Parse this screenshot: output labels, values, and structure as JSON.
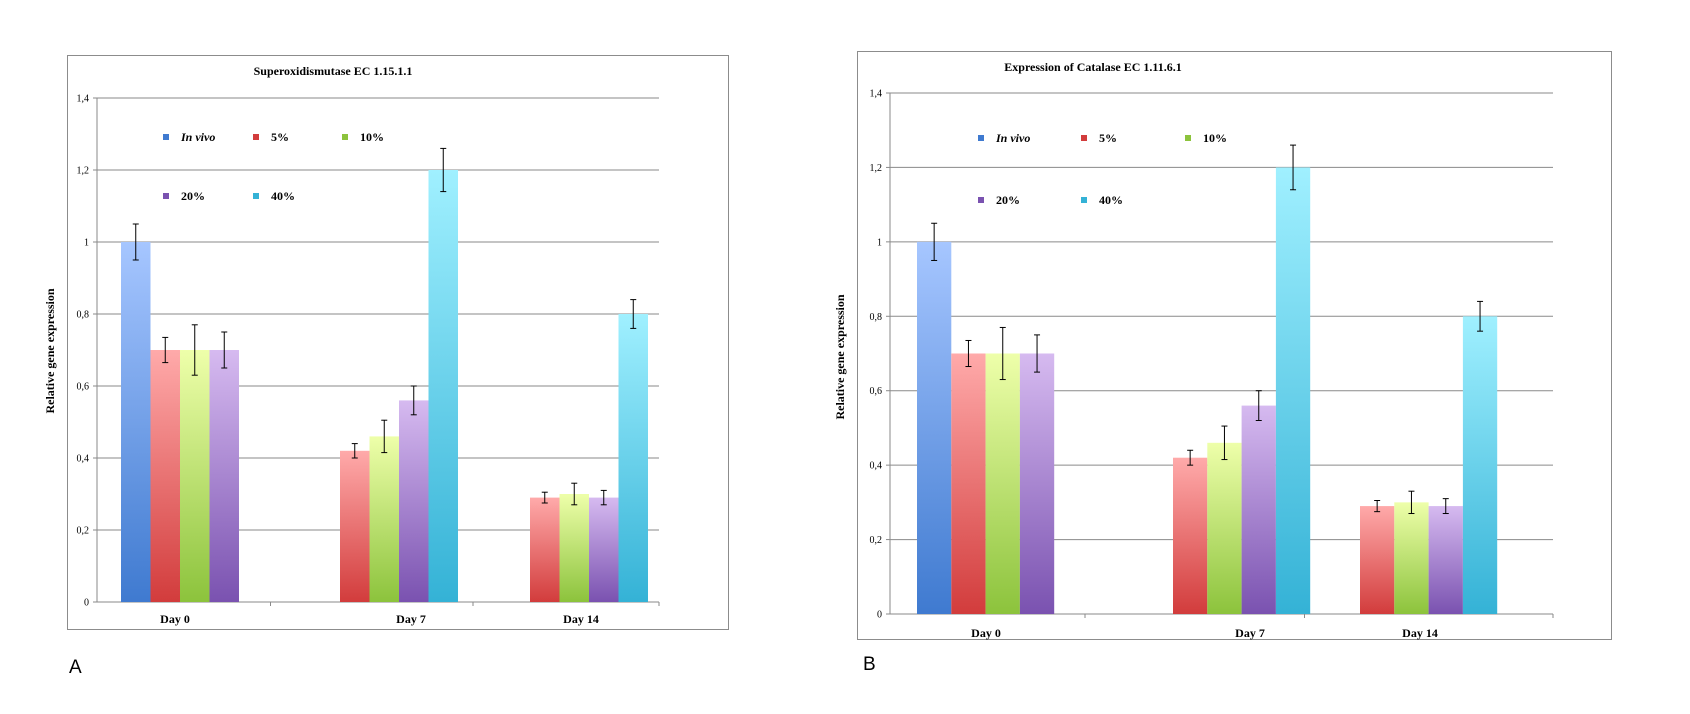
{
  "colors": {
    "in_vivo": [
      "#a6c6ff",
      "#3f7ad0"
    ],
    "p5": [
      "#ffaaaa",
      "#d23c3c"
    ],
    "p10": [
      "#eeffaa",
      "#8cc33c"
    ],
    "p20": [
      "#d6baf0",
      "#7a52b0"
    ],
    "p40": [
      "#a0f0ff",
      "#34b2d6"
    ],
    "grid": "#8a8a8a",
    "error_bar": "#000000"
  },
  "panels": {
    "a": {
      "letter": "A"
    },
    "b": {
      "letter": "B"
    }
  },
  "chart_data": [
    {
      "type": "bar",
      "title": "Superoxidismutase EC 1.15.1.1",
      "xlabel": "",
      "ylabel": "Relative gene expression",
      "ylim": [
        0,
        1.4
      ],
      "yticks": [
        "0",
        "0,2",
        "0,4",
        "0,6",
        "0,8",
        "1",
        "1,2",
        "1,4"
      ],
      "grid": true,
      "legend_position": "top-left, inside plot",
      "categories": [
        "Day 0",
        "Day 7",
        "Day 14"
      ],
      "series": [
        {
          "name": "In vivo",
          "color_key": "in_vivo",
          "italic": true,
          "values": [
            1.0,
            null,
            null
          ],
          "errors": [
            0.05,
            null,
            null
          ]
        },
        {
          "name": "5%",
          "color_key": "p5",
          "values": [
            0.7,
            0.42,
            0.29
          ],
          "errors": [
            0.035,
            0.02,
            0.015
          ]
        },
        {
          "name": "10%",
          "color_key": "p10",
          "values": [
            0.7,
            0.46,
            0.3
          ],
          "errors": [
            0.07,
            0.045,
            0.03
          ]
        },
        {
          "name": "20%",
          "color_key": "p20",
          "values": [
            0.7,
            0.56,
            0.29
          ],
          "errors": [
            0.05,
            0.04,
            0.02
          ]
        },
        {
          "name": "40%",
          "color_key": "p40",
          "values": [
            null,
            1.2,
            0.8
          ],
          "errors": [
            null,
            0.06,
            0.04
          ]
        }
      ]
    },
    {
      "type": "bar",
      "title": "Expression of Catalase EC 1.11.6.1",
      "xlabel": "",
      "ylabel": "Relative gene expression",
      "ylim": [
        0,
        1.4
      ],
      "yticks": [
        "0",
        "0,2",
        "0,4",
        "0,6",
        "0,8",
        "1",
        "1,2",
        "1,4"
      ],
      "grid": true,
      "legend_position": "top-left, inside plot",
      "categories": [
        "Day 0",
        "Day 7",
        "Day 14"
      ],
      "series": [
        {
          "name": "In vivo",
          "color_key": "in_vivo",
          "italic": true,
          "values": [
            1.0,
            null,
            null
          ],
          "errors": [
            0.05,
            null,
            null
          ]
        },
        {
          "name": "5%",
          "color_key": "p5",
          "values": [
            0.7,
            0.42,
            0.29
          ],
          "errors": [
            0.035,
            0.02,
            0.015
          ]
        },
        {
          "name": "10%",
          "color_key": "p10",
          "values": [
            0.7,
            0.46,
            0.3
          ],
          "errors": [
            0.07,
            0.045,
            0.03
          ]
        },
        {
          "name": "20%",
          "color_key": "p20",
          "values": [
            0.7,
            0.56,
            0.29
          ],
          "errors": [
            0.05,
            0.04,
            0.02
          ]
        },
        {
          "name": "40%",
          "color_key": "p40",
          "values": [
            null,
            1.2,
            0.8
          ],
          "errors": [
            null,
            0.06,
            0.04
          ]
        }
      ]
    }
  ]
}
